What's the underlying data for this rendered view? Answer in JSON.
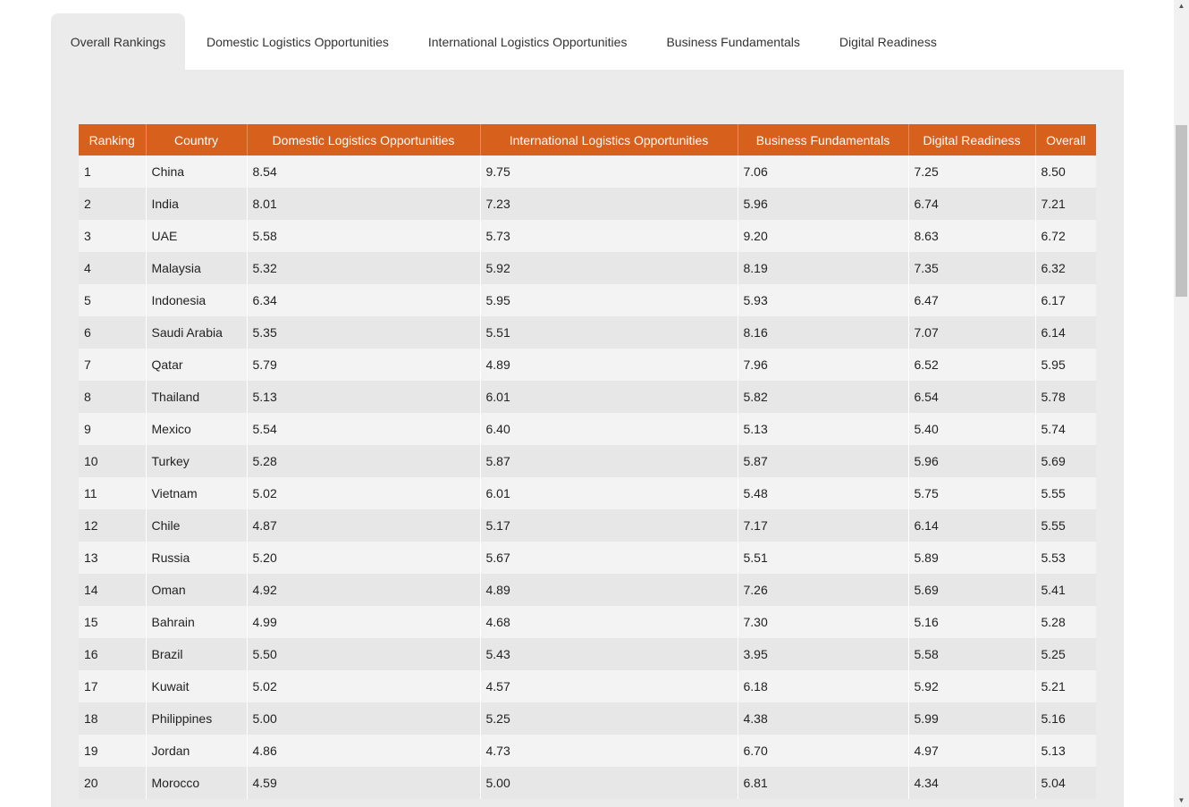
{
  "tabs": [
    {
      "label": "Overall Rankings",
      "active": true
    },
    {
      "label": "Domestic Logistics Opportunities",
      "active": false
    },
    {
      "label": "International Logistics Opportunities",
      "active": false
    },
    {
      "label": "Business Fundamentals",
      "active": false
    },
    {
      "label": "Digital Readiness",
      "active": false
    }
  ],
  "table": {
    "headers": [
      "Ranking",
      "Country",
      "Domestic Logistics Opportunities",
      "International Logistics Opportunities",
      "Business Fundamentals",
      "Digital Readiness",
      "Overall"
    ],
    "rows": [
      [
        "1",
        "China",
        "8.54",
        "9.75",
        "7.06",
        "7.25",
        "8.50"
      ],
      [
        "2",
        "India",
        "8.01",
        "7.23",
        "5.96",
        "6.74",
        "7.21"
      ],
      [
        "3",
        "UAE",
        "5.58",
        "5.73",
        "9.20",
        "8.63",
        "6.72"
      ],
      [
        "4",
        "Malaysia",
        "5.32",
        "5.92",
        "8.19",
        "7.35",
        "6.32"
      ],
      [
        "5",
        "Indonesia",
        "6.34",
        "5.95",
        "5.93",
        "6.47",
        "6.17"
      ],
      [
        "6",
        "Saudi Arabia",
        "5.35",
        "5.51",
        "8.16",
        "7.07",
        "6.14"
      ],
      [
        "7",
        "Qatar",
        "5.79",
        "4.89",
        "7.96",
        "6.52",
        "5.95"
      ],
      [
        "8",
        "Thailand",
        "5.13",
        "6.01",
        "5.82",
        "6.54",
        "5.78"
      ],
      [
        "9",
        "Mexico",
        "5.54",
        "6.40",
        "5.13",
        "5.40",
        "5.74"
      ],
      [
        "10",
        "Turkey",
        "5.28",
        "5.87",
        "5.87",
        "5.96",
        "5.69"
      ],
      [
        "11",
        "Vietnam",
        "5.02",
        "6.01",
        "5.48",
        "5.75",
        "5.55"
      ],
      [
        "12",
        "Chile",
        "4.87",
        "5.17",
        "7.17",
        "6.14",
        "5.55"
      ],
      [
        "13",
        "Russia",
        "5.20",
        "5.67",
        "5.51",
        "5.89",
        "5.53"
      ],
      [
        "14",
        "Oman",
        "4.92",
        "4.89",
        "7.26",
        "5.69",
        "5.41"
      ],
      [
        "15",
        "Bahrain",
        "4.99",
        "4.68",
        "7.30",
        "5.16",
        "5.28"
      ],
      [
        "16",
        "Brazil",
        "5.50",
        "5.43",
        "3.95",
        "5.58",
        "5.25"
      ],
      [
        "17",
        "Kuwait",
        "5.02",
        "4.57",
        "6.18",
        "5.92",
        "5.21"
      ],
      [
        "18",
        "Philippines",
        "5.00",
        "5.25",
        "4.38",
        "5.99",
        "5.16"
      ],
      [
        "19",
        "Jordan",
        "4.86",
        "4.73",
        "6.70",
        "4.97",
        "5.13"
      ],
      [
        "20",
        "Morocco",
        "4.59",
        "5.00",
        "6.81",
        "4.34",
        "5.04"
      ]
    ]
  }
}
